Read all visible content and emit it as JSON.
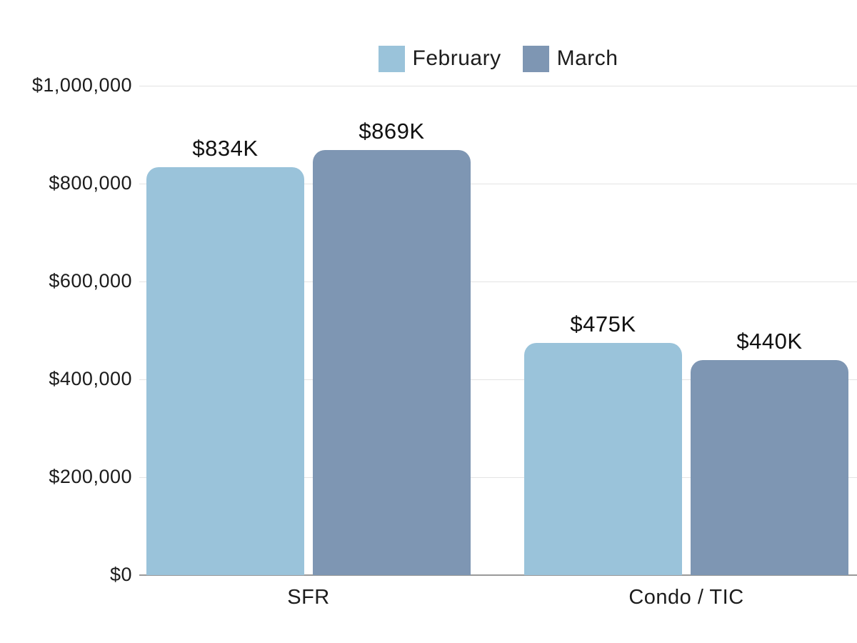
{
  "chart_data": {
    "type": "bar",
    "title": "",
    "xlabel": "",
    "ylabel": "",
    "categories": [
      "SFR",
      "Condo / TIC"
    ],
    "series": [
      {
        "name": "February",
        "color": "#9ac3da",
        "values": [
          834000,
          475000
        ],
        "value_labels": [
          "$834K",
          "$475K"
        ]
      },
      {
        "name": "March",
        "color": "#7e96b3",
        "values": [
          869000,
          440000
        ],
        "value_labels": [
          "$869K",
          "$440K"
        ]
      }
    ],
    "ylim": [
      0,
      1000000
    ],
    "yticks": [
      {
        "value": 0,
        "label": "$0"
      },
      {
        "value": 200000,
        "label": "$200,000"
      },
      {
        "value": 400000,
        "label": "$400,000"
      },
      {
        "value": 600000,
        "label": "$600,000"
      },
      {
        "value": 800000,
        "label": "$800,000"
      },
      {
        "value": 1000000,
        "label": "$1,000,000"
      }
    ],
    "legend_position": "top-center",
    "grid": "horizontal"
  },
  "colors": {
    "background": "#ffffff",
    "gridline": "#e3e3e3",
    "zero_line": "#999999",
    "text": "#1c1c1c",
    "series_february": "#9ac3da",
    "series_march": "#7e96b3"
  }
}
